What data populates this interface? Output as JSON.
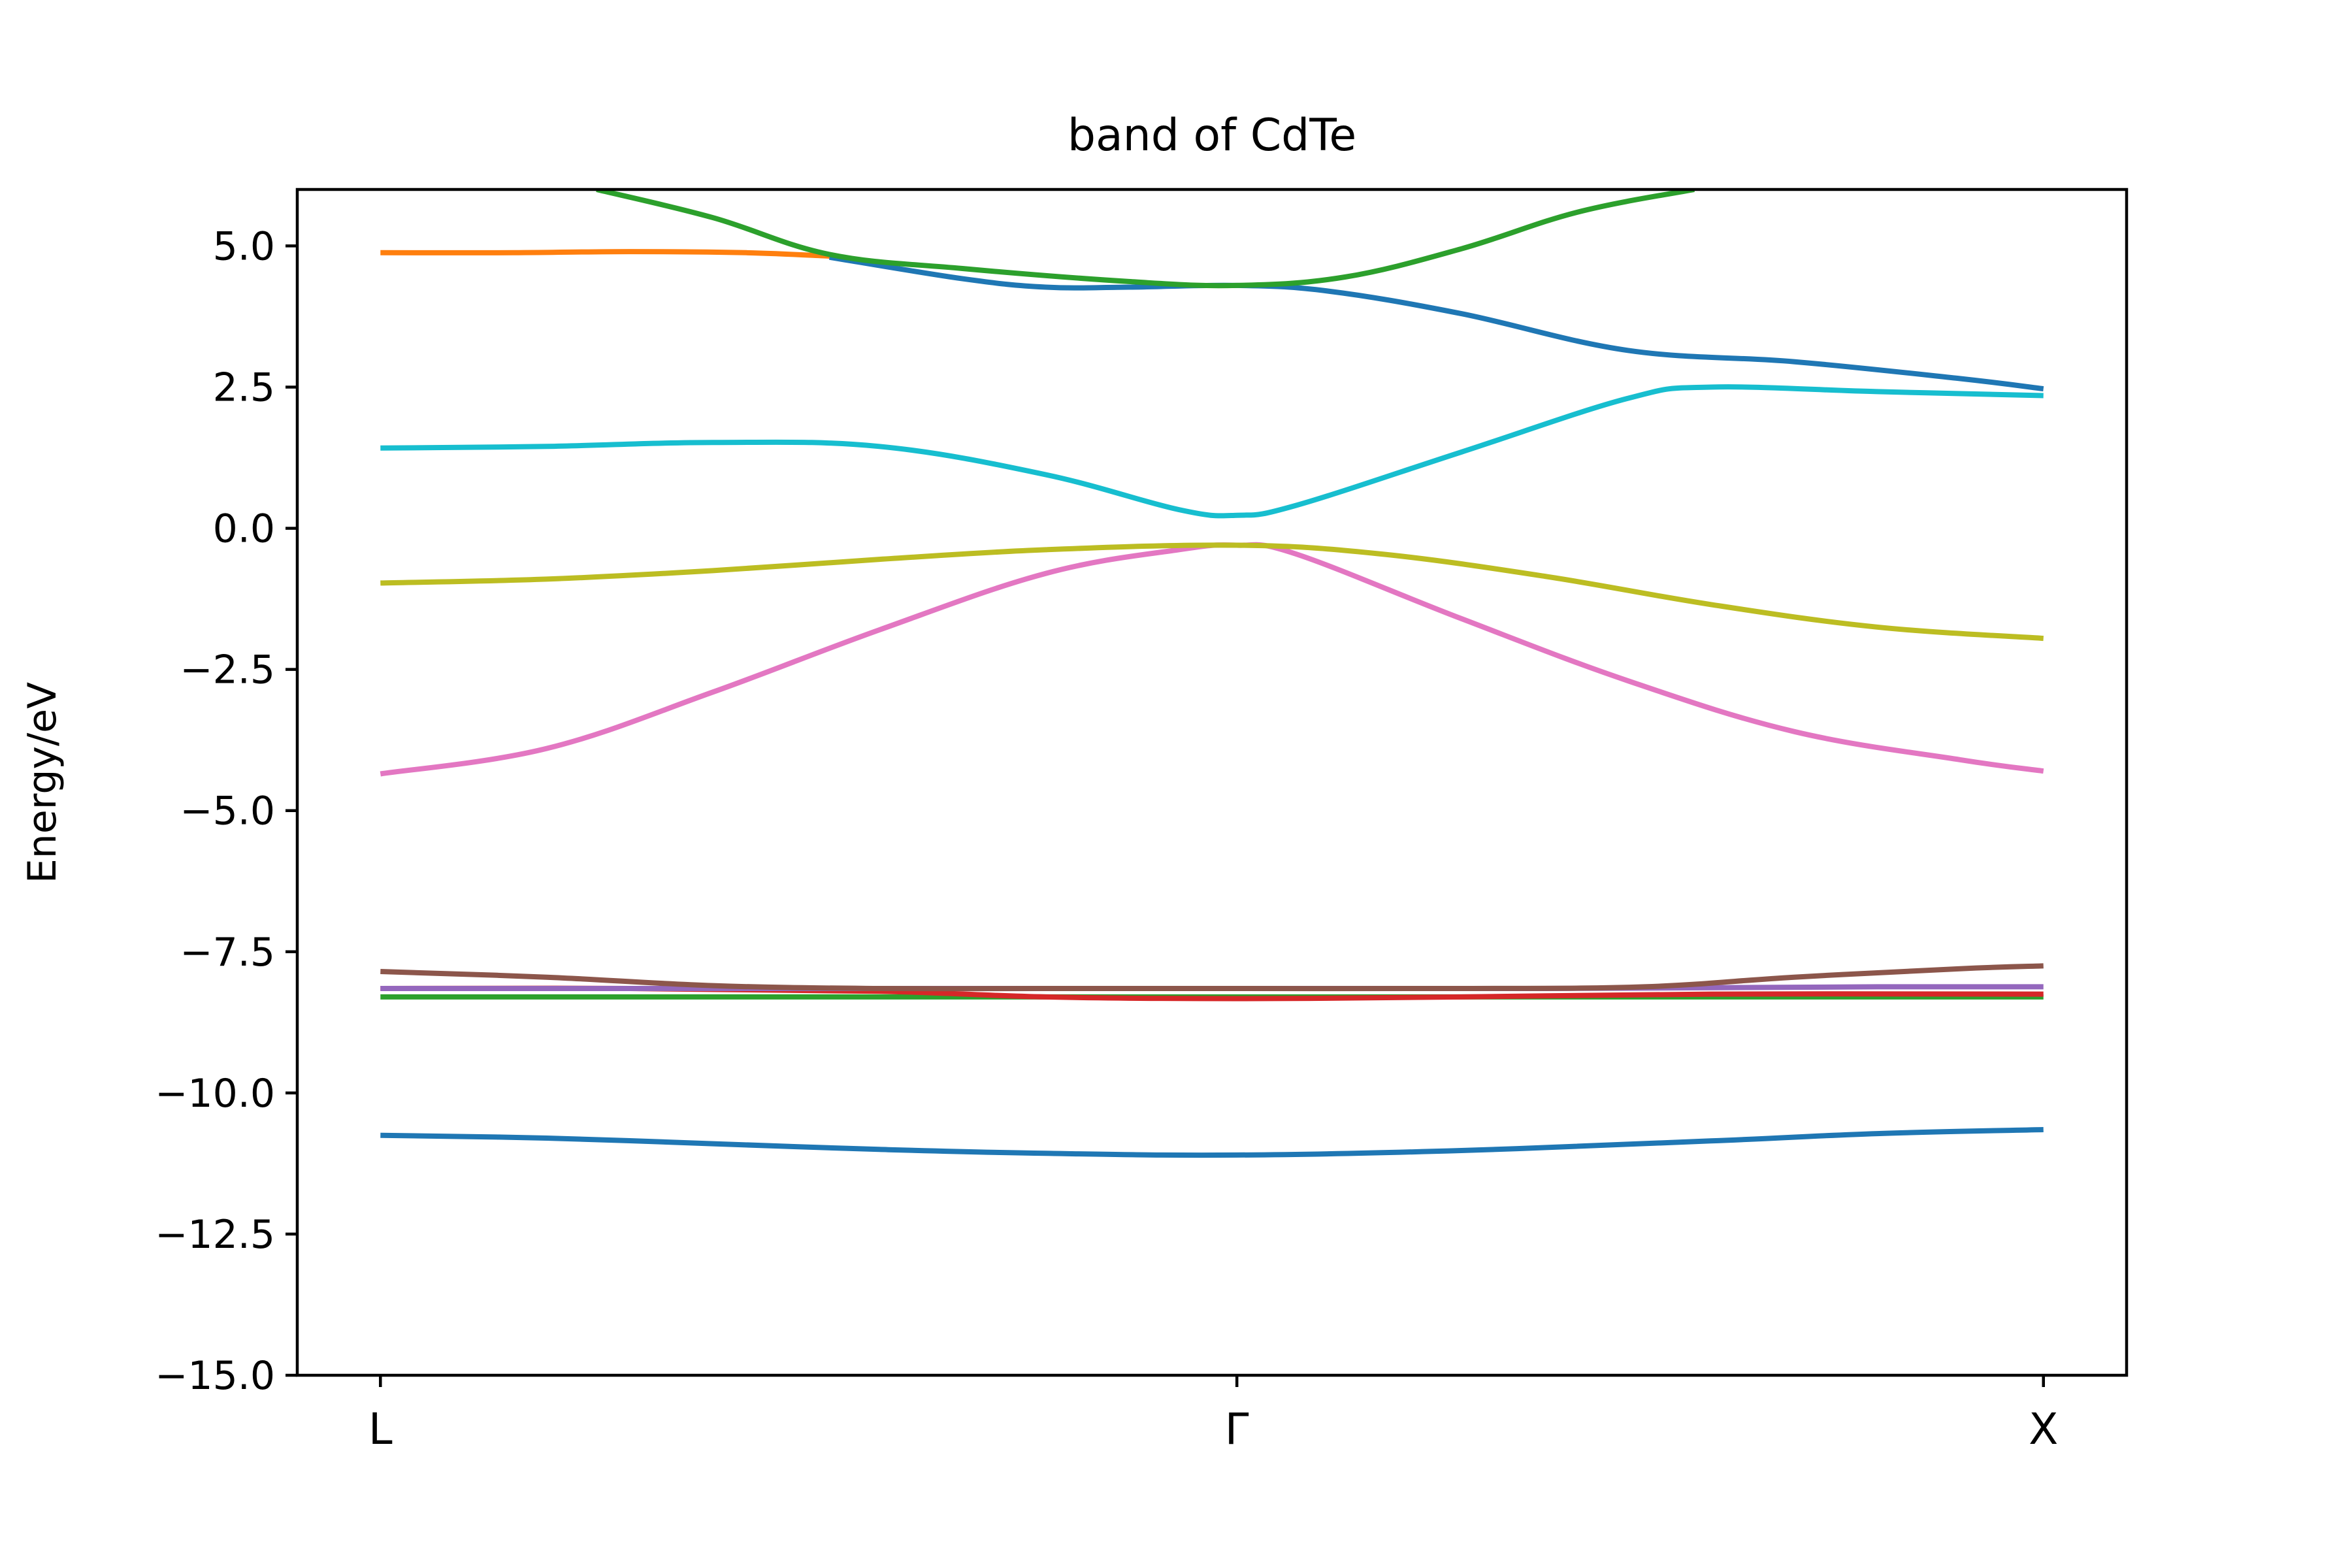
{
  "chart_data": {
    "type": "line",
    "title": "band of CdTe",
    "xlabel": "",
    "ylabel": "Energy/eV",
    "xlim": [
      -0.05,
      1.05
    ],
    "ylim": [
      -15.0,
      6.0
    ],
    "xticks": [
      {
        "value": 0.0,
        "label": "L"
      },
      {
        "value": 0.515,
        "label": "Γ"
      },
      {
        "value": 1.0,
        "label": "X"
      }
    ],
    "yticks": [
      {
        "value": 5.0,
        "label": "5.0"
      },
      {
        "value": 2.5,
        "label": "2.5"
      },
      {
        "value": 0.0,
        "label": "0.0"
      },
      {
        "value": -2.5,
        "label": "−2.5"
      },
      {
        "value": -5.0,
        "label": "−5.0"
      },
      {
        "value": -7.5,
        "label": "−7.5"
      },
      {
        "value": -10.0,
        "label": "−10.0"
      },
      {
        "value": -12.5,
        "label": "−12.5"
      },
      {
        "value": -15.0,
        "label": "−15.0"
      }
    ],
    "grid": false,
    "series": [
      {
        "color": "#1f77b4",
        "x": [
          0.0,
          0.1,
          0.2,
          0.3,
          0.4,
          0.515,
          0.65,
          0.8,
          0.9,
          1.0
        ],
        "y": [
          -10.75,
          -10.8,
          -10.9,
          -11.0,
          -11.07,
          -11.1,
          -11.02,
          -10.85,
          -10.72,
          -10.65
        ]
      },
      {
        "color": "#2ca02c",
        "x": [
          0.0,
          0.2,
          0.4,
          0.515,
          0.7,
          0.9,
          1.0
        ],
        "y": [
          -8.3,
          -8.3,
          -8.3,
          -8.3,
          -8.3,
          -8.3,
          -8.3
        ]
      },
      {
        "color": "#d62728",
        "x": [
          0.0,
          0.15,
          0.3,
          0.4,
          0.515,
          0.65,
          0.8,
          1.0
        ],
        "y": [
          -8.15,
          -8.15,
          -8.2,
          -8.3,
          -8.33,
          -8.3,
          -8.25,
          -8.25
        ]
      },
      {
        "color": "#9467bd",
        "x": [
          0.0,
          0.2,
          0.4,
          0.515,
          0.7,
          0.9,
          1.0
        ],
        "y": [
          -8.15,
          -8.15,
          -8.15,
          -8.15,
          -8.15,
          -8.12,
          -8.12
        ]
      },
      {
        "color": "#8c564b",
        "x": [
          0.0,
          0.1,
          0.2,
          0.3,
          0.4,
          0.515,
          0.65,
          0.76,
          0.85,
          0.95,
          1.0
        ],
        "y": [
          -7.85,
          -7.95,
          -8.1,
          -8.15,
          -8.15,
          -8.15,
          -8.15,
          -8.12,
          -7.95,
          -7.8,
          -7.75
        ]
      },
      {
        "color": "#e377c2",
        "x": [
          0.0,
          0.1,
          0.2,
          0.3,
          0.4,
          0.48,
          0.515,
          0.55,
          0.65,
          0.75,
          0.85,
          0.95,
          1.0
        ],
        "y": [
          -4.35,
          -3.9,
          -2.9,
          -1.8,
          -0.8,
          -0.38,
          -0.3,
          -0.45,
          -1.6,
          -2.7,
          -3.6,
          -4.1,
          -4.3
        ]
      },
      {
        "color": "#bcbd22",
        "x": [
          0.0,
          0.1,
          0.2,
          0.3,
          0.4,
          0.515,
          0.6,
          0.7,
          0.8,
          0.9,
          1.0
        ],
        "y": [
          -0.97,
          -0.9,
          -0.75,
          -0.55,
          -0.38,
          -0.3,
          -0.45,
          -0.85,
          -1.35,
          -1.75,
          -1.95
        ]
      },
      {
        "color": "#17becf",
        "x": [
          0.0,
          0.1,
          0.2,
          0.3,
          0.4,
          0.48,
          0.515,
          0.55,
          0.65,
          0.75,
          0.8,
          0.9,
          1.0
        ],
        "y": [
          1.42,
          1.45,
          1.52,
          1.45,
          0.95,
          0.33,
          0.23,
          0.4,
          1.35,
          2.3,
          2.5,
          2.42,
          2.35
        ]
      },
      {
        "color": "#1f77b4",
        "x": [
          0.27,
          0.35,
          0.4,
          0.45,
          0.515,
          0.57,
          0.65,
          0.75,
          0.85,
          0.95,
          1.0
        ],
        "y": [
          4.8,
          4.42,
          4.27,
          4.27,
          4.3,
          4.2,
          3.8,
          3.15,
          2.95,
          2.65,
          2.47
        ]
      },
      {
        "color": "#ff7f0e",
        "x": [
          0.0,
          0.08,
          0.15,
          0.22,
          0.27
        ],
        "y": [
          4.88,
          4.88,
          4.9,
          4.88,
          4.82
        ]
      },
      {
        "color": "#2ca02c",
        "x": [
          0.13,
          0.2,
          0.27,
          0.35,
          0.45,
          0.515,
          0.58,
          0.65,
          0.72,
          0.79
        ],
        "y": [
          6.0,
          5.5,
          4.85,
          4.6,
          4.37,
          4.3,
          4.45,
          4.95,
          5.6,
          6.0
        ]
      }
    ]
  }
}
